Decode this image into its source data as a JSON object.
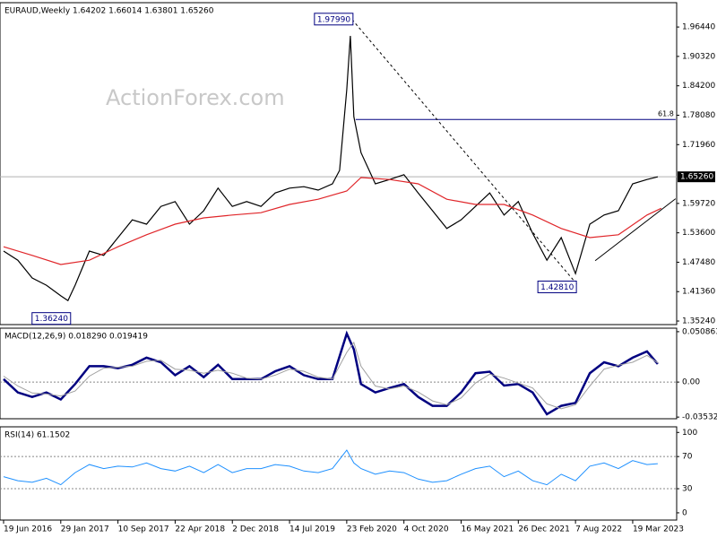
{
  "chart_data": [
    {
      "type": "line",
      "title": "EURAUD,Weekly  1.64202 1.66014 1.63801 1.65260",
      "watermark": "ActionForex.com",
      "ylim": [
        1.345,
        2.015
      ],
      "yticks": [
        {
          "value": 1.3524,
          "label": "1.35240"
        },
        {
          "value": 1.4136,
          "label": "1.41360"
        },
        {
          "value": 1.4748,
          "label": "1.47480"
        },
        {
          "value": 1.536,
          "label": "1.53600"
        },
        {
          "value": 1.5972,
          "label": "1.59720"
        },
        {
          "value": 1.7196,
          "label": "1.71960"
        },
        {
          "value": 1.7808,
          "label": "1.78080"
        },
        {
          "value": 1.842,
          "label": "1.84200"
        },
        {
          "value": 1.9032,
          "label": "1.90320"
        },
        {
          "value": 1.9644,
          "label": "1.96440"
        }
      ],
      "last_price": {
        "value": 1.6526,
        "label": "1.65260"
      },
      "series": [
        {
          "name": "EURAUD",
          "color": "#000000",
          "x": [
            0,
            8,
            16,
            24,
            32,
            36,
            40,
            48,
            56,
            64,
            72,
            80,
            88,
            96,
            104,
            112,
            120,
            128,
            136,
            144,
            152,
            160,
            168,
            176,
            184,
            188,
            192,
            194,
            196,
            200,
            208,
            216,
            224,
            232,
            240,
            248,
            256,
            264,
            272,
            280,
            288,
            296,
            304,
            312,
            320,
            328,
            336,
            344,
            352,
            360,
            366
          ],
          "values": [
            1.498,
            1.479,
            1.442,
            1.427,
            1.405,
            1.395,
            1.427,
            1.498,
            1.489,
            1.526,
            1.563,
            1.554,
            1.591,
            1.601,
            1.554,
            1.582,
            1.629,
            1.591,
            1.601,
            1.591,
            1.619,
            1.629,
            1.632,
            1.625,
            1.638,
            1.666,
            1.834,
            1.946,
            1.778,
            1.703,
            1.638,
            1.647,
            1.657,
            1.619,
            1.582,
            1.545,
            1.563,
            1.591,
            1.619,
            1.573,
            1.601,
            1.535,
            1.479,
            1.526,
            1.451,
            1.554,
            1.573,
            1.582,
            1.638,
            1.647,
            1.6526
          ]
        },
        {
          "name": "SMA",
          "color": "#e0262a",
          "x": [
            0,
            16,
            32,
            48,
            64,
            80,
            96,
            112,
            128,
            144,
            160,
            176,
            192,
            200,
            216,
            232,
            248,
            264,
            280,
            296,
            312,
            328,
            344,
            360,
            368
          ],
          "values": [
            1.507,
            1.489,
            1.47,
            1.479,
            1.507,
            1.532,
            1.554,
            1.567,
            1.573,
            1.578,
            1.595,
            1.606,
            1.623,
            1.651,
            1.647,
            1.638,
            1.606,
            1.595,
            1.595,
            1.573,
            1.545,
            1.526,
            1.532,
            1.573,
            1.587
          ]
        }
      ],
      "annotations": [
        {
          "x": 195,
          "value": 1.9799,
          "label": "1.97990"
        },
        {
          "x": 37,
          "value": 1.3624,
          "label": "1.36240"
        },
        {
          "x": 320,
          "value": 1.4281,
          "label": "1.42810"
        }
      ],
      "level_lines": [
        {
          "x": [
            197,
            376
          ],
          "value": 1.772,
          "label": "61.8"
        }
      ],
      "trendlines": [
        {
          "x": [
            195,
            321
          ],
          "y": [
            1.9799,
            1.4281
          ],
          "style": "dashed"
        },
        {
          "x": [
            331,
            376
          ],
          "y": [
            1.478,
            1.607
          ],
          "style": "solid"
        }
      ]
    },
    {
      "type": "line",
      "title": "MACD(12,26,9) 0.018290 0.019419",
      "ylim": [
        -0.037,
        0.0544
      ],
      "yticks": [
        -0.035322,
        {
          "value": 0,
          "label": "0.00"
        },
        0.050863
      ],
      "levels": [
        0
      ],
      "series": [
        {
          "name": "MACD",
          "color": "#000080",
          "width": 2.5,
          "x": [
            0,
            8,
            16,
            24,
            32,
            40,
            48,
            56,
            64,
            72,
            80,
            88,
            96,
            104,
            112,
            120,
            128,
            136,
            144,
            152,
            160,
            168,
            176,
            184,
            192,
            196,
            200,
            208,
            216,
            224,
            232,
            240,
            248,
            256,
            264,
            272,
            280,
            288,
            296,
            304,
            312,
            320,
            328,
            336,
            344,
            352,
            360,
            366
          ],
          "values": [
            0.003,
            -0.0105,
            -0.015,
            -0.0105,
            -0.0175,
            -0.002,
            0.016,
            0.016,
            0.014,
            0.0175,
            0.0246,
            0.02,
            0.007,
            0.016,
            0.005,
            0.0175,
            0.003,
            0.003,
            0.003,
            0.011,
            0.016,
            0.007,
            0.003,
            0.003,
            0.049,
            0.033,
            -0.002,
            -0.0105,
            -0.006,
            -0.002,
            -0.015,
            -0.024,
            -0.024,
            -0.0105,
            0.009,
            0.0105,
            -0.0035,
            -0.002,
            -0.0105,
            -0.0325,
            -0.024,
            -0.021,
            0.009,
            0.02,
            0.016,
            0.0246,
            0.031,
            0.01829
          ]
        },
        {
          "name": "Signal",
          "color": "#a0a0a0",
          "width": 1,
          "x": [
            0,
            8,
            16,
            24,
            32,
            40,
            48,
            56,
            64,
            72,
            80,
            88,
            96,
            104,
            112,
            120,
            128,
            136,
            144,
            152,
            160,
            168,
            176,
            184,
            192,
            196,
            200,
            208,
            216,
            224,
            232,
            240,
            248,
            256,
            264,
            272,
            280,
            288,
            296,
            304,
            312,
            320,
            328,
            336,
            344,
            352,
            360,
            366
          ],
          "values": [
            0.006,
            -0.004,
            -0.011,
            -0.012,
            -0.014,
            -0.009,
            0.006,
            0.014,
            0.015,
            0.016,
            0.021,
            0.022,
            0.013,
            0.012,
            0.009,
            0.012,
            0.009,
            0.004,
            0.003,
            0.007,
            0.013,
            0.011,
            0.005,
            0.003,
            0.03,
            0.04,
            0.016,
            -0.004,
            -0.007,
            -0.004,
            -0.01,
            -0.019,
            -0.023,
            -0.016,
            -0.001,
            0.008,
            0.004,
            -0.001,
            -0.006,
            -0.022,
            -0.027,
            -0.023,
            -0.004,
            0.013,
            0.017,
            0.02,
            0.027,
            0.019419
          ]
        }
      ]
    },
    {
      "type": "line",
      "title": "RSI(14) 61.1502",
      "ylim": [
        -9,
        107
      ],
      "yticks": [
        0,
        30,
        70,
        100
      ],
      "levels": [
        30,
        70
      ],
      "xlim": [
        -2,
        376.6
      ],
      "xticks": [
        {
          "value": 0,
          "label": "19 Jun 2016"
        },
        {
          "value": 32,
          "label": "29 Jan 2017"
        },
        {
          "value": 64,
          "label": "10 Sep 2017"
        },
        {
          "value": 96,
          "label": "22 Apr 2018"
        },
        {
          "value": 128,
          "label": "2 Dec 2018"
        },
        {
          "value": 160,
          "label": "14 Jul 2019"
        },
        {
          "value": 192,
          "label": "23 Feb 2020"
        },
        {
          "value": 224,
          "label": "4 Oct 2020"
        },
        {
          "value": 256,
          "label": "16 May 2021"
        },
        {
          "value": 288,
          "label": "26 Dec 2021"
        },
        {
          "value": 320,
          "label": "7 Aug 2022"
        },
        {
          "value": 352,
          "label": "19 Mar 2023"
        }
      ],
      "series": [
        {
          "name": "RSI",
          "color": "#1e90ff",
          "width": 1,
          "x": [
            0,
            8,
            16,
            24,
            32,
            40,
            48,
            56,
            64,
            72,
            80,
            88,
            96,
            104,
            112,
            120,
            128,
            136,
            144,
            152,
            160,
            168,
            176,
            184,
            192,
            196,
            200,
            208,
            216,
            224,
            232,
            240,
            248,
            256,
            264,
            272,
            280,
            288,
            296,
            304,
            312,
            320,
            328,
            336,
            344,
            352,
            360,
            366
          ],
          "values": [
            45,
            40,
            38,
            43,
            35,
            50,
            60,
            55,
            58,
            57,
            62,
            55,
            52,
            58,
            50,
            60,
            50,
            55,
            55,
            60,
            58,
            52,
            50,
            55,
            78,
            62,
            55,
            48,
            52,
            50,
            42,
            38,
            40,
            48,
            55,
            58,
            45,
            52,
            40,
            35,
            48,
            40,
            58,
            62,
            55,
            65,
            60,
            61.1502
          ]
        }
      ]
    }
  ]
}
